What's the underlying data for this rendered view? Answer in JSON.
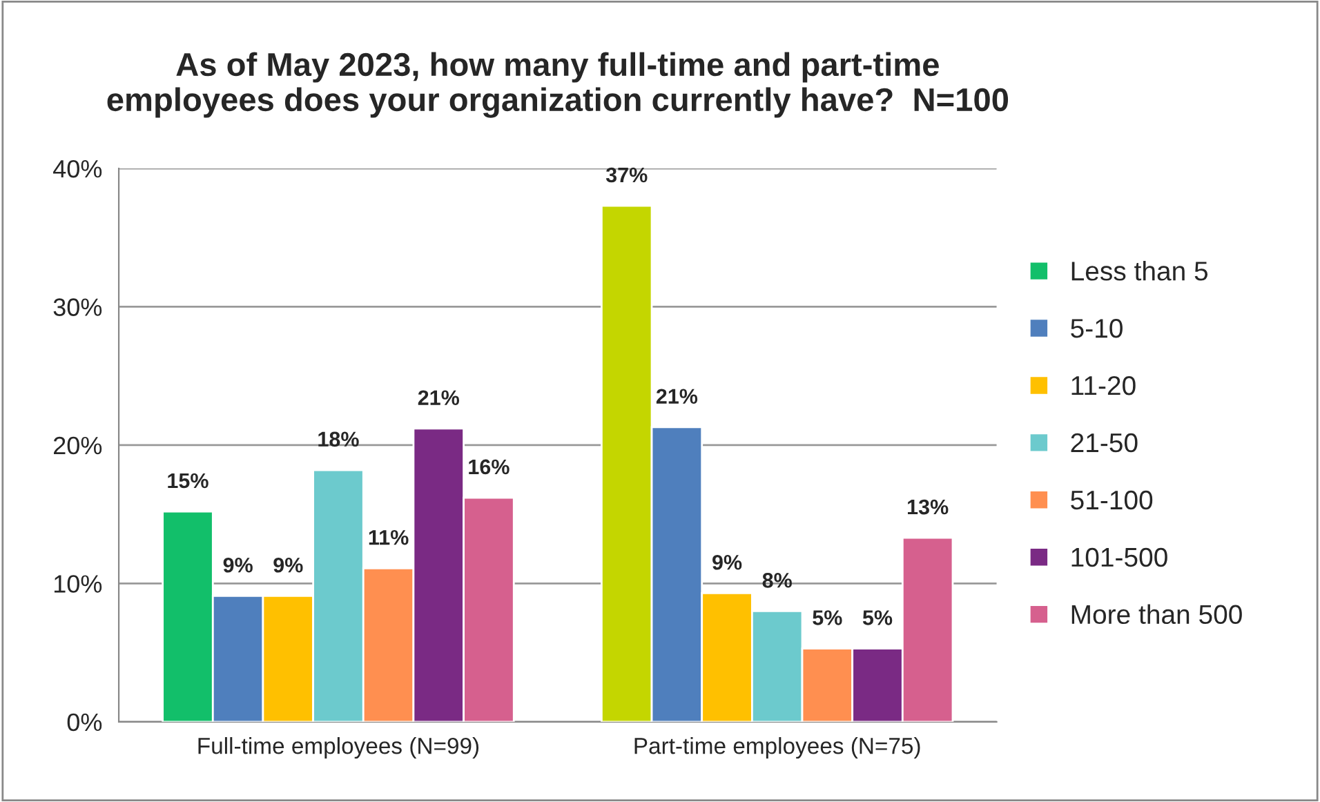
{
  "chart_data": {
    "type": "bar",
    "title": "As of May 2023, how many full-time and part-time\nemployees does your organization currently have?  N=100",
    "categories": [
      "Full-time employees (N=99)",
      "Part-time employees (N=75)"
    ],
    "series": [
      {
        "name": "Less than 5",
        "color": "#12bf6a",
        "colors": [
          "#12bf6a",
          "#c4d600"
        ],
        "values": [
          15.2,
          37.3
        ],
        "value_labels": [
          "15%",
          "37%"
        ]
      },
      {
        "name": "5-10",
        "color": "#4f7fbd",
        "values": [
          9.1,
          21.3
        ],
        "value_labels": [
          "9%",
          "21%"
        ]
      },
      {
        "name": "11-20",
        "color": "#ffc000",
        "values": [
          9.1,
          9.3
        ],
        "value_labels": [
          "9%",
          "9%"
        ]
      },
      {
        "name": "21-50",
        "color": "#6ccacd",
        "values": [
          18.2,
          8.0
        ],
        "value_labels": [
          "18%",
          "8%"
        ]
      },
      {
        "name": "51-100",
        "color": "#ff8f50",
        "values": [
          11.1,
          5.3
        ],
        "value_labels": [
          "11%",
          "5%"
        ]
      },
      {
        "name": "101-500",
        "color": "#7a2a84",
        "values": [
          21.2,
          5.3
        ],
        "value_labels": [
          "21%",
          "5%"
        ]
      },
      {
        "name": "More than 500",
        "color": "#d6608e",
        "values": [
          16.2,
          13.3
        ],
        "value_labels": [
          "16%",
          "13%"
        ]
      }
    ],
    "ylim": [
      0,
      40
    ],
    "yticks": [
      {
        "value": 0,
        "label": "0%"
      },
      {
        "value": 10,
        "label": "10%"
      },
      {
        "value": 20,
        "label": "20%"
      },
      {
        "value": 30,
        "label": "30%"
      },
      {
        "value": 40,
        "label": "40%"
      }
    ],
    "grid": "y",
    "legend": "right"
  }
}
